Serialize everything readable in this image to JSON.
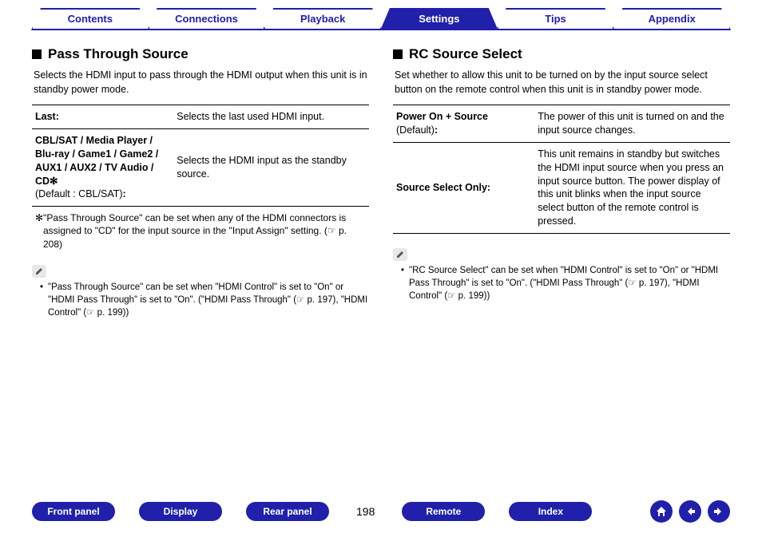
{
  "colors": {
    "brand": "#2020aa",
    "text": "#000000",
    "bg": "#ffffff",
    "pencil_bg": "#e8e8e8"
  },
  "topnav": {
    "tabs": [
      {
        "label": "Contents",
        "active": false
      },
      {
        "label": "Connections",
        "active": false
      },
      {
        "label": "Playback",
        "active": false
      },
      {
        "label": "Settings",
        "active": true
      },
      {
        "label": "Tips",
        "active": false
      },
      {
        "label": "Appendix",
        "active": false
      }
    ]
  },
  "left": {
    "heading": "Pass Through Source",
    "desc": "Selects the HDMI input to pass through the HDMI output when this unit is in standby power mode.",
    "rows": [
      {
        "k": "Last:",
        "v": "Selects the last used HDMI input."
      },
      {
        "k_html": "CBL/SAT / Media Player / Blu-ray / Game1 / Game2 / AUX1 / AUX2 / TV Audio / CD✻<br><span class=\"default-text\">(Default : CBL/SAT)</span>:",
        "v": "Selects the HDMI input as the standby source."
      }
    ],
    "star_note": "✻\"Pass Through Source\" can be set when any of the HDMI connectors is assigned to \"CD\" for the input source in the \"Input Assign\" setting.  (☞ p. 208)",
    "bullet_note": "\"Pass Through Source\" can be set when \"HDMI Control\" is set to \"On\" or \"HDMI Pass Through\" is set to \"On\". (\"HDMI Pass Through\" (☞ p. 197), \"HDMI Control\" (☞ p. 199))"
  },
  "right": {
    "heading": "RC Source Select",
    "desc": "Set whether to allow this unit to be turned on by the input source select button on the remote control when this unit is in standby power mode.",
    "rows": [
      {
        "k_html": "Power On + Source<br><span class=\"default-text\">(Default)</span>:",
        "v": "The power of this unit is turned on and the input source changes."
      },
      {
        "k": "Source Select Only:",
        "v": "This unit remains in standby but switches the HDMI input source when you press an input source button. The power display of this unit blinks when the input source select button of the remote control is pressed."
      }
    ],
    "bullet_note": "\"RC Source Select\" can be set when \"HDMI Control\" is set to \"On\" or \"HDMI Pass Through\" is set to \"On\". (\"HDMI Pass Through\" (☞ p. 197), \"HDMI Control\" (☞ p. 199))"
  },
  "bottom": {
    "pills": [
      "Front panel",
      "Display",
      "Rear panel"
    ],
    "page": "198",
    "pills2": [
      "Remote",
      "Index"
    ]
  }
}
